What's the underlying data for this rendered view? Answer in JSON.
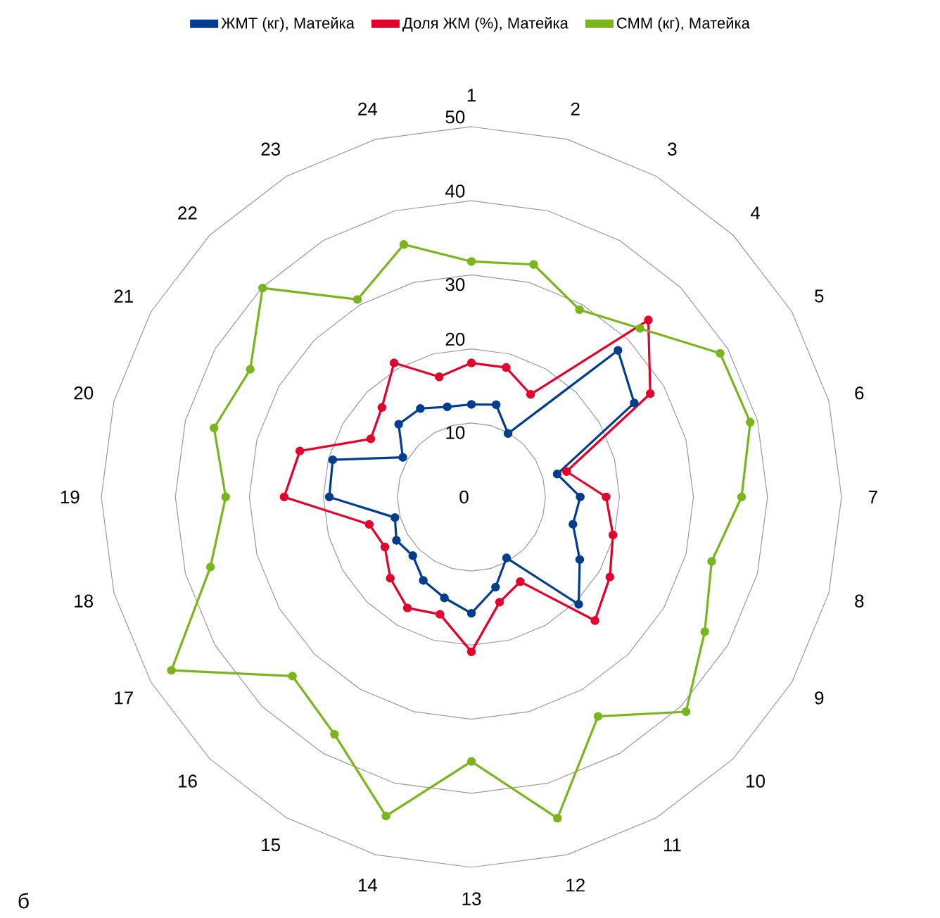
{
  "chart_data": {
    "type": "radar",
    "categories": [
      "1",
      "2",
      "3",
      "4",
      "5",
      "6",
      "7",
      "8",
      "9",
      "10",
      "11",
      "12",
      "13",
      "14",
      "15",
      "16",
      "17",
      "18",
      "19",
      "20",
      "21",
      "22",
      "23",
      "24"
    ],
    "ylim": [
      0,
      50
    ],
    "yticks": [
      0,
      10,
      20,
      30,
      40,
      50
    ],
    "grid": true,
    "legend": "top",
    "marker": "circle",
    "line_style": "solid",
    "annotations": [
      "б"
    ],
    "series": [
      {
        "name": "ЖМТ (кг), Матейка",
        "color": "#003d8f",
        "values": [
          12.5,
          12.9,
          9.9,
          28.0,
          25.4,
          12.0,
          14.7,
          14.2,
          16.9,
          20.5,
          9.5,
          12.6,
          15.7,
          14.1,
          13.0,
          11.2,
          11.7,
          10.7,
          19.2,
          19.4,
          10.7,
          13.9,
          13.8,
          12.6
        ]
      },
      {
        "name": "Доля ЖМ (%), Матейка",
        "color": "#e3002b",
        "values": [
          18.1,
          18.1,
          16.0,
          33.8,
          27.9,
          13.3,
          18.2,
          19.8,
          21.6,
          23.6,
          13.2,
          14.7,
          20.9,
          16.4,
          17.3,
          15.5,
          13.5,
          14.3,
          25.3,
          24.0,
          15.7,
          17.1,
          20.9,
          16.8
        ]
      },
      {
        "name": "СММ (кг), Матейка",
        "color": "#7ab51d",
        "values": [
          31.8,
          32.5,
          29.2,
          32.2,
          38.8,
          39.0,
          36.5,
          33.6,
          36.4,
          41.0,
          34.2,
          44.9,
          35.7,
          44.6,
          37.0,
          34.2,
          46.8,
          36.5,
          33.2,
          36.0,
          34.5,
          39.9,
          30.8,
          35.3
        ]
      }
    ]
  }
}
